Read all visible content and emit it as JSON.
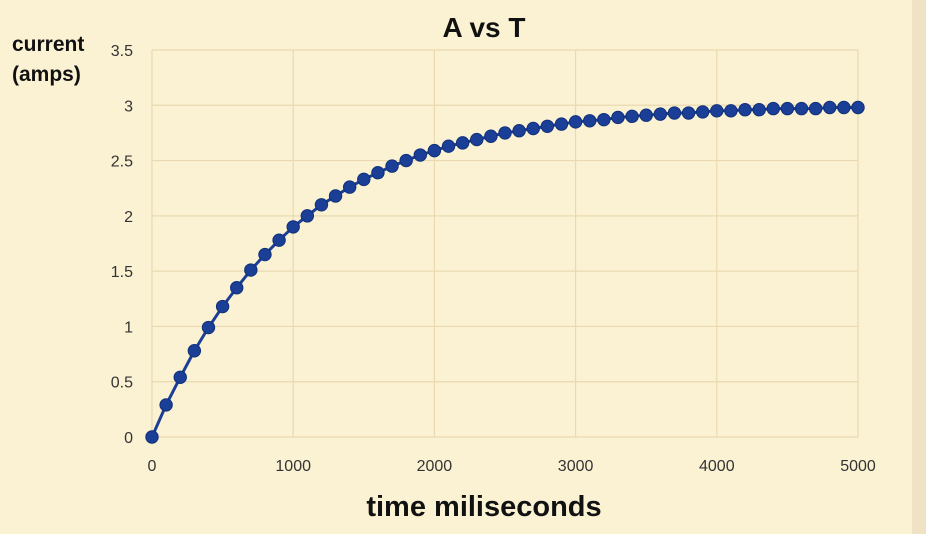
{
  "chart_data": {
    "type": "line",
    "title": "A vs T",
    "xlabel": "time miliseconds",
    "ylabel": [
      "current",
      "(amps)"
    ],
    "xlim": [
      0,
      5000
    ],
    "ylim": [
      0,
      3.5
    ],
    "x_ticks": [
      "0",
      "1000",
      "2000",
      "3000",
      "4000",
      "5000"
    ],
    "y_ticks": [
      "0",
      "0.5",
      "1",
      "1.5",
      "2",
      "2.5",
      "3",
      "3.5"
    ],
    "grid": true,
    "legend": "none",
    "series": [
      {
        "color": "#1b3f96",
        "marker": "circle",
        "x": [
          0,
          100,
          200,
          300,
          400,
          500,
          600,
          700,
          800,
          900,
          1000,
          1100,
          1200,
          1300,
          1400,
          1500,
          1600,
          1700,
          1800,
          1900,
          2000,
          2100,
          2200,
          2300,
          2400,
          2500,
          2600,
          2700,
          2800,
          2900,
          3000,
          3100,
          3200,
          3300,
          3400,
          3500,
          3600,
          3700,
          3800,
          3900,
          4000,
          4100,
          4200,
          4300,
          4400,
          4500,
          4600,
          4700,
          4800,
          4900,
          5000
        ],
        "y": [
          0,
          0.29,
          0.54,
          0.78,
          0.99,
          1.18,
          1.35,
          1.51,
          1.65,
          1.78,
          1.9,
          2.0,
          2.1,
          2.18,
          2.26,
          2.33,
          2.39,
          2.45,
          2.5,
          2.55,
          2.59,
          2.63,
          2.66,
          2.69,
          2.72,
          2.75,
          2.77,
          2.79,
          2.81,
          2.83,
          2.85,
          2.86,
          2.87,
          2.89,
          2.9,
          2.91,
          2.92,
          2.93,
          2.93,
          2.94,
          2.95,
          2.95,
          2.96,
          2.96,
          2.97,
          2.97,
          2.97,
          2.97,
          2.98,
          2.98,
          2.98
        ]
      }
    ]
  },
  "colors": {
    "background": "#fbf2d3",
    "grid": "#ead9b0",
    "series": "#1b3f96"
  }
}
